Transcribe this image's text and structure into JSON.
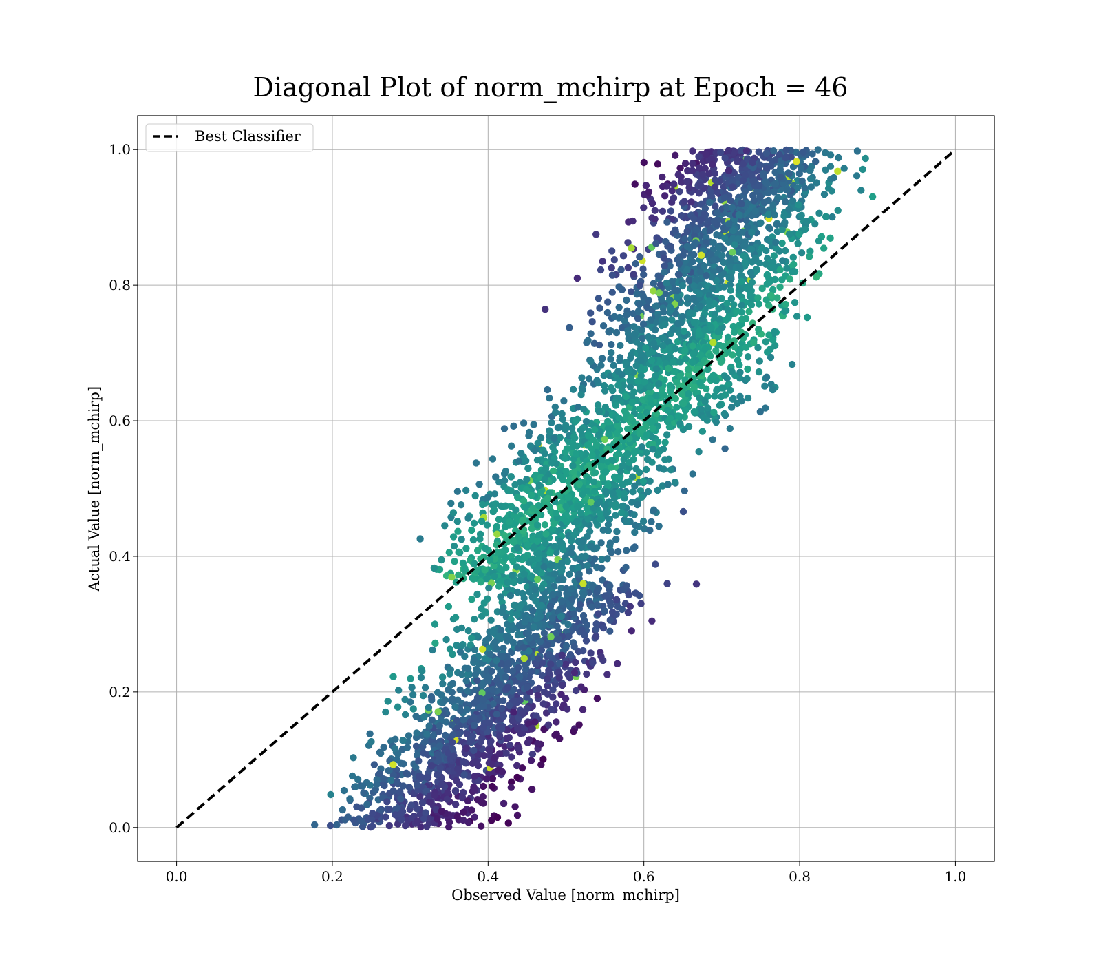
{
  "chart_data": {
    "type": "scatter",
    "title": "Diagonal Plot of norm_mchirp at Epoch = 46",
    "xlabel": "Observed Value [norm_mchirp]",
    "ylabel": "Actual Value [norm_mchirp]",
    "xlim": [
      -0.05,
      1.05
    ],
    "ylim": [
      -0.05,
      1.05
    ],
    "xticks": [
      0.0,
      0.2,
      0.4,
      0.6,
      0.8,
      1.0
    ],
    "yticks": [
      0.0,
      0.2,
      0.4,
      0.6,
      0.8,
      1.0
    ],
    "xtick_labels": [
      "0.0",
      "0.2",
      "0.4",
      "0.6",
      "0.8",
      "1.0"
    ],
    "ytick_labels": [
      "0.0",
      "0.2",
      "0.4",
      "0.6",
      "0.8",
      "1.0"
    ],
    "grid": true,
    "legend": {
      "position": "top-left",
      "entries": [
        "Best Classifier"
      ]
    },
    "colormap": "viridis",
    "reference_line": {
      "name": "Best Classifier",
      "x": [
        0.0,
        1.0
      ],
      "y": [
        0.0,
        1.0
      ],
      "style": "dashed",
      "color": "#000000"
    },
    "scatter_clusters": [
      {
        "description": "upper band",
        "x_range": [
          0.39,
          0.87
        ],
        "y_range": [
          0.58,
          1.0
        ],
        "center": [
          0.63,
          0.82
        ]
      },
      {
        "description": "middle band",
        "x_range": [
          0.3,
          0.82
        ],
        "y_range": [
          0.35,
          0.65
        ],
        "center": [
          0.55,
          0.5
        ]
      },
      {
        "description": "lower band",
        "x_range": [
          0.13,
          0.66
        ],
        "y_range": [
          0.0,
          0.38
        ],
        "center": [
          0.42,
          0.18
        ]
      }
    ]
  }
}
